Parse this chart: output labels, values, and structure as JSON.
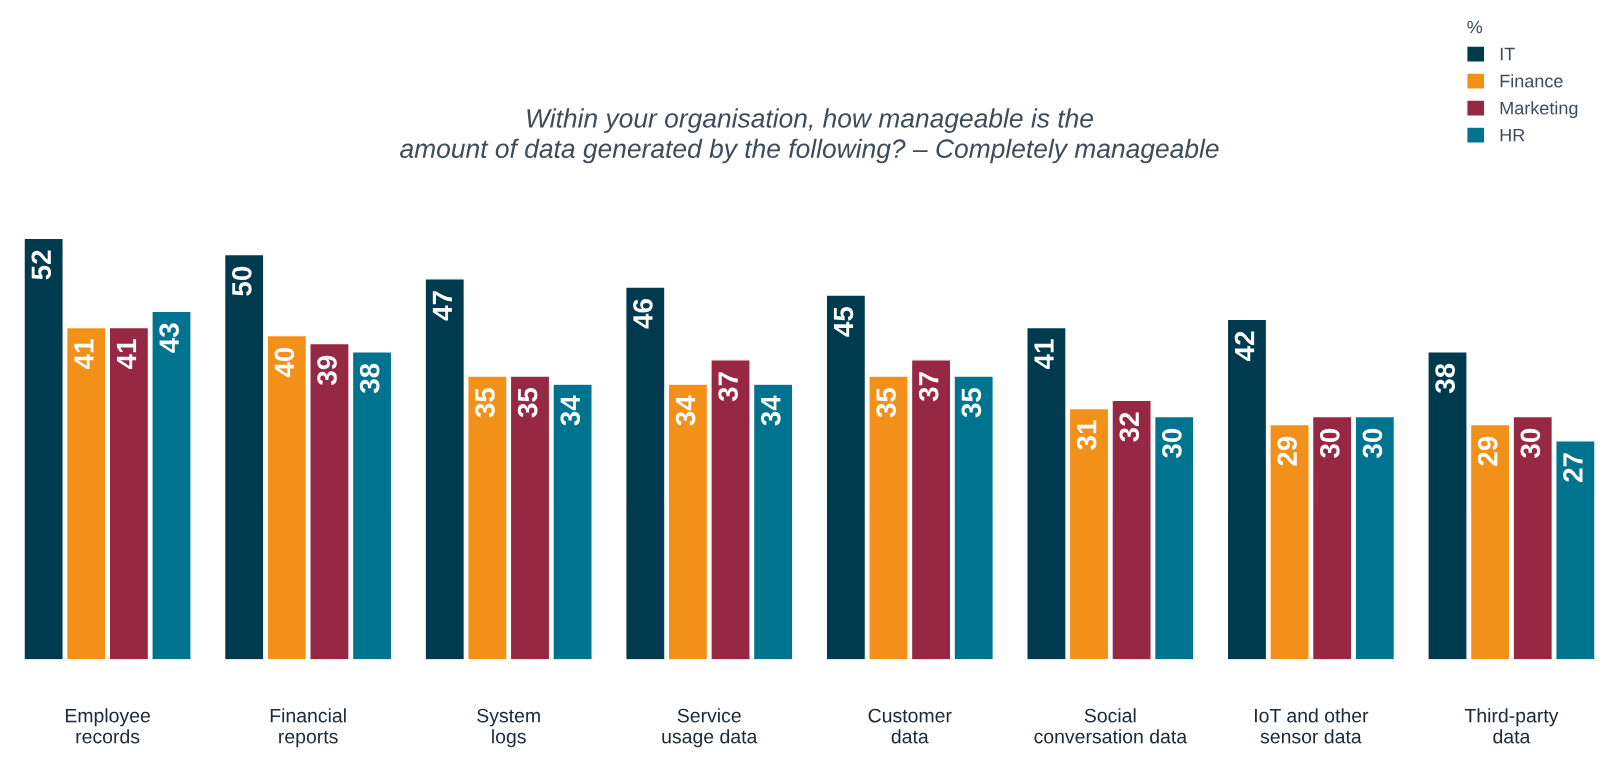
{
  "chart_data": {
    "type": "bar",
    "title": "Within your organisation, how manageable is the\namount of data generated by the following? – Completely manageable",
    "legend_title": "%",
    "categories": [
      "Employee\nrecords",
      "Financial\nreports",
      "System\nlogs",
      "Service\nusage data",
      "Customer\ndata",
      "Social\nconversation data",
      "IoT and other\nsensor data",
      "Third-party\ndata"
    ],
    "series": [
      {
        "name": "IT",
        "color": "#003a4f",
        "values": [
          52,
          50,
          47,
          46,
          45,
          41,
          42,
          38
        ]
      },
      {
        "name": "Finance",
        "color": "#f39019",
        "values": [
          41,
          40,
          35,
          34,
          35,
          31,
          29,
          29
        ]
      },
      {
        "name": "Marketing",
        "color": "#962843",
        "values": [
          41,
          39,
          35,
          37,
          37,
          32,
          30,
          30
        ]
      },
      {
        "name": "HR",
        "color": "#00748f",
        "values": [
          43,
          38,
          34,
          34,
          35,
          30,
          30,
          27
        ]
      }
    ],
    "data_labels": true,
    "legend": "top right",
    "grid": false
  }
}
